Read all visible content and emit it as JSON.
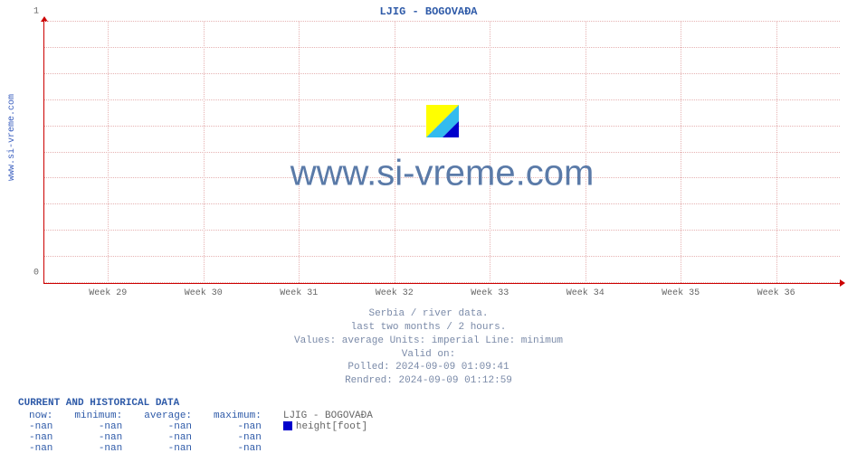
{
  "vertical_label": "www.si-vreme.com",
  "chart": {
    "title": "LJIG -  BOGOVAĐA",
    "type": "line",
    "ylim": [
      0,
      1
    ],
    "yticks": [
      0,
      1
    ],
    "xticks": [
      "Week 29",
      "Week 30",
      "Week 31",
      "Week 32",
      "Week 33",
      "Week 34",
      "Week 35",
      "Week 36"
    ],
    "grid_color": "#e6b3b3",
    "axis_color": "#cc0000",
    "background_color": "#ffffff",
    "hgrid_count": 10,
    "watermark_text": "www.si-vreme.com",
    "watermark_text_color": "#5a7aa8",
    "watermark_logo_colors": [
      "#ffff00",
      "#33bbee",
      "#0000cc"
    ],
    "title_color": "#2e5aa8",
    "title_fontsize": 12,
    "tick_fontsize": 10,
    "tick_color": "#666666",
    "xtick_positions_pct": [
      8,
      20,
      32,
      44,
      56,
      68,
      80,
      92
    ]
  },
  "meta": {
    "line1": "Serbia / river data.",
    "line2": "last two months / 2 hours.",
    "line3": "Values: average  Units: imperial  Line: minimum",
    "line4": "Valid on:",
    "line5": "Polled: 2024-09-09 01:09:41",
    "line6": "Rendred: 2024-09-09 01:12:59",
    "text_color": "#7a8aa8"
  },
  "data_section": {
    "heading": "CURRENT AND HISTORICAL DATA",
    "columns": [
      "now:",
      "minimum:",
      "average:",
      "maximum:"
    ],
    "series_label": "LJIG -  BOGOVAĐA",
    "legend_swatch_color": "#0000cc",
    "legend_text": "height[foot]",
    "rows": [
      [
        "-nan",
        "-nan",
        "-nan",
        "-nan"
      ],
      [
        "-nan",
        "-nan",
        "-nan",
        "-nan"
      ],
      [
        "-nan",
        "-nan",
        "-nan",
        "-nan"
      ]
    ],
    "text_color": "#2e5aa8"
  }
}
